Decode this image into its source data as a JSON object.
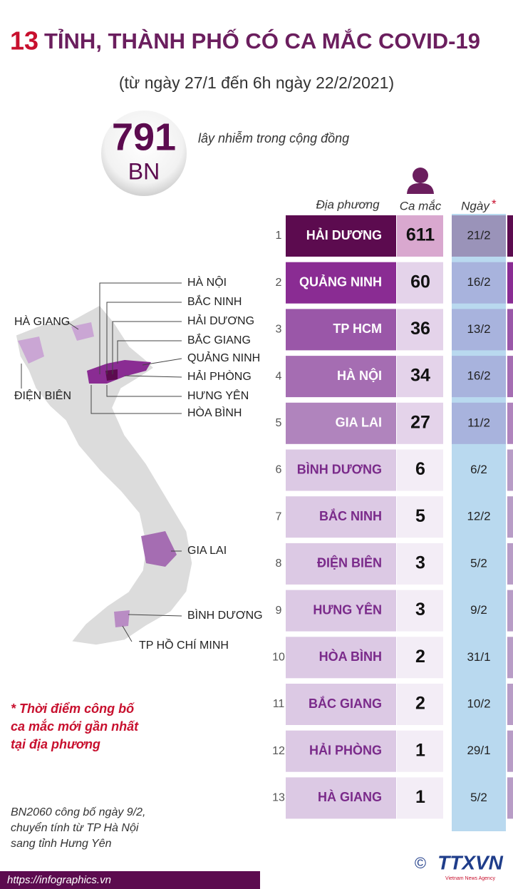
{
  "header": {
    "title_number": "13",
    "title": "TỈNH, THÀNH PHỐ CÓ CA MẮC COVID-19",
    "subtitle": "(từ ngày 27/1 đến 6h ngày 22/2/2021)"
  },
  "summary": {
    "number": "791",
    "unit": "BN",
    "label": "lây nhiễm trong cộng đồng"
  },
  "table": {
    "headers": [
      "Địa phương",
      "Ca mắc",
      "Ngày"
    ],
    "header_mark": "*",
    "rows": [
      [
        "1",
        "HẢI DƯƠNG",
        "611",
        "21/2"
      ],
      [
        "2",
        "QUẢNG NINH",
        "60",
        "16/2"
      ],
      [
        "3",
        "TP HCM",
        "36",
        "13/2"
      ],
      [
        "4",
        "HÀ NỘI",
        "34",
        "16/2"
      ],
      [
        "5",
        "GIA LAI",
        "27",
        "11/2"
      ],
      [
        "6",
        "BÌNH DƯƠNG",
        "6",
        "6/2"
      ],
      [
        "7",
        "BẮC NINH",
        "5",
        "12/2"
      ],
      [
        "8",
        "ĐIỆN BIÊN",
        "3",
        "5/2"
      ],
      [
        "9",
        "HƯNG YÊN",
        "3",
        "9/2"
      ],
      [
        "10",
        "HÒA BÌNH",
        "2",
        "31/1"
      ],
      [
        "11",
        "BẮC GIANG",
        "2",
        "10/2"
      ],
      [
        "12",
        "HẢI PHÒNG",
        "1",
        "29/1"
      ],
      [
        "13",
        "HÀ GIANG",
        "1",
        "5/2"
      ]
    ]
  },
  "map_labels": [
    "HÀ NỘI",
    "BẮC NINH",
    "HẢI DƯƠNG",
    "BẮC GIANG",
    "QUẢNG NINH",
    "HẢI PHÒNG",
    "HƯNG YÊN",
    "HÒA BÌNH",
    "HÀ GIANG",
    "ĐIỆN BIÊN",
    "GIA LAI",
    "BÌNH DƯƠNG",
    "TP HỒ CHÍ MINH"
  ],
  "notes": {
    "asterisk_note": [
      "* Thời điểm công bố",
      "ca mắc mới gần nhất",
      "tại địa phương"
    ],
    "transfer_note": [
      "BN2060 công bố ngày 9/2,",
      "chuyển tính từ TP Hà Nội",
      "sang tỉnh Hưng Yên"
    ]
  },
  "footer": {
    "url": "https://infographics.vn",
    "copyright": "©",
    "logo": "TTXVN",
    "logo_sub": "Vietnam News Agency"
  }
}
